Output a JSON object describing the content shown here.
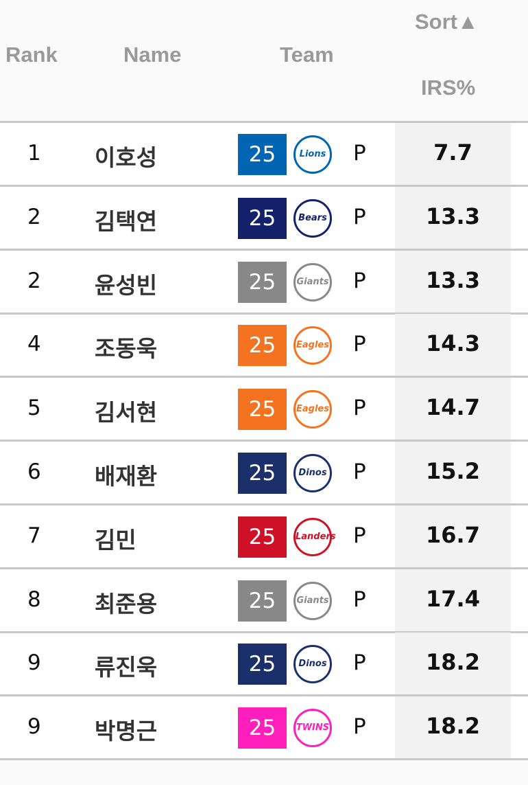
{
  "header": {
    "rank": "Rank",
    "name": "Name",
    "team": "Team",
    "sort": "Sort▲",
    "irs": "IRS%"
  },
  "rows": [
    {
      "rank": "1",
      "name": "이호성",
      "number": "25",
      "team": "Lions",
      "color": "#0066b3",
      "pos": "P",
      "irs": "7.7"
    },
    {
      "rank": "2",
      "name": "김택연",
      "number": "25",
      "team": "Bears",
      "color": "#13216a",
      "pos": "P",
      "irs": "13.3"
    },
    {
      "rank": "2",
      "name": "윤성빈",
      "number": "25",
      "team": "Giants",
      "color": "#888888",
      "pos": "P",
      "irs": "13.3"
    },
    {
      "rank": "4",
      "name": "조동욱",
      "number": "25",
      "team": "Eagles",
      "color": "#f37321",
      "pos": "P",
      "irs": "14.3"
    },
    {
      "rank": "5",
      "name": "김서현",
      "number": "25",
      "team": "Eagles",
      "color": "#f37321",
      "pos": "P",
      "irs": "14.7"
    },
    {
      "rank": "6",
      "name": "배재환",
      "number": "25",
      "team": "Dinos",
      "color": "#1b2f6b",
      "pos": "P",
      "irs": "15.2"
    },
    {
      "rank": "7",
      "name": "김민",
      "number": "25",
      "team": "Landers",
      "color": "#ce1126",
      "pos": "P",
      "irs": "16.7"
    },
    {
      "rank": "8",
      "name": "최준용",
      "number": "25",
      "team": "Giants",
      "color": "#888888",
      "pos": "P",
      "irs": "17.4"
    },
    {
      "rank": "9",
      "name": "류진욱",
      "number": "25",
      "team": "Dinos",
      "color": "#1b2f6b",
      "pos": "P",
      "irs": "18.2"
    },
    {
      "rank": "9",
      "name": "박명근",
      "number": "25",
      "team": "TWINS",
      "color": "#ff1fbd",
      "pos": "P",
      "irs": "18.2"
    }
  ]
}
